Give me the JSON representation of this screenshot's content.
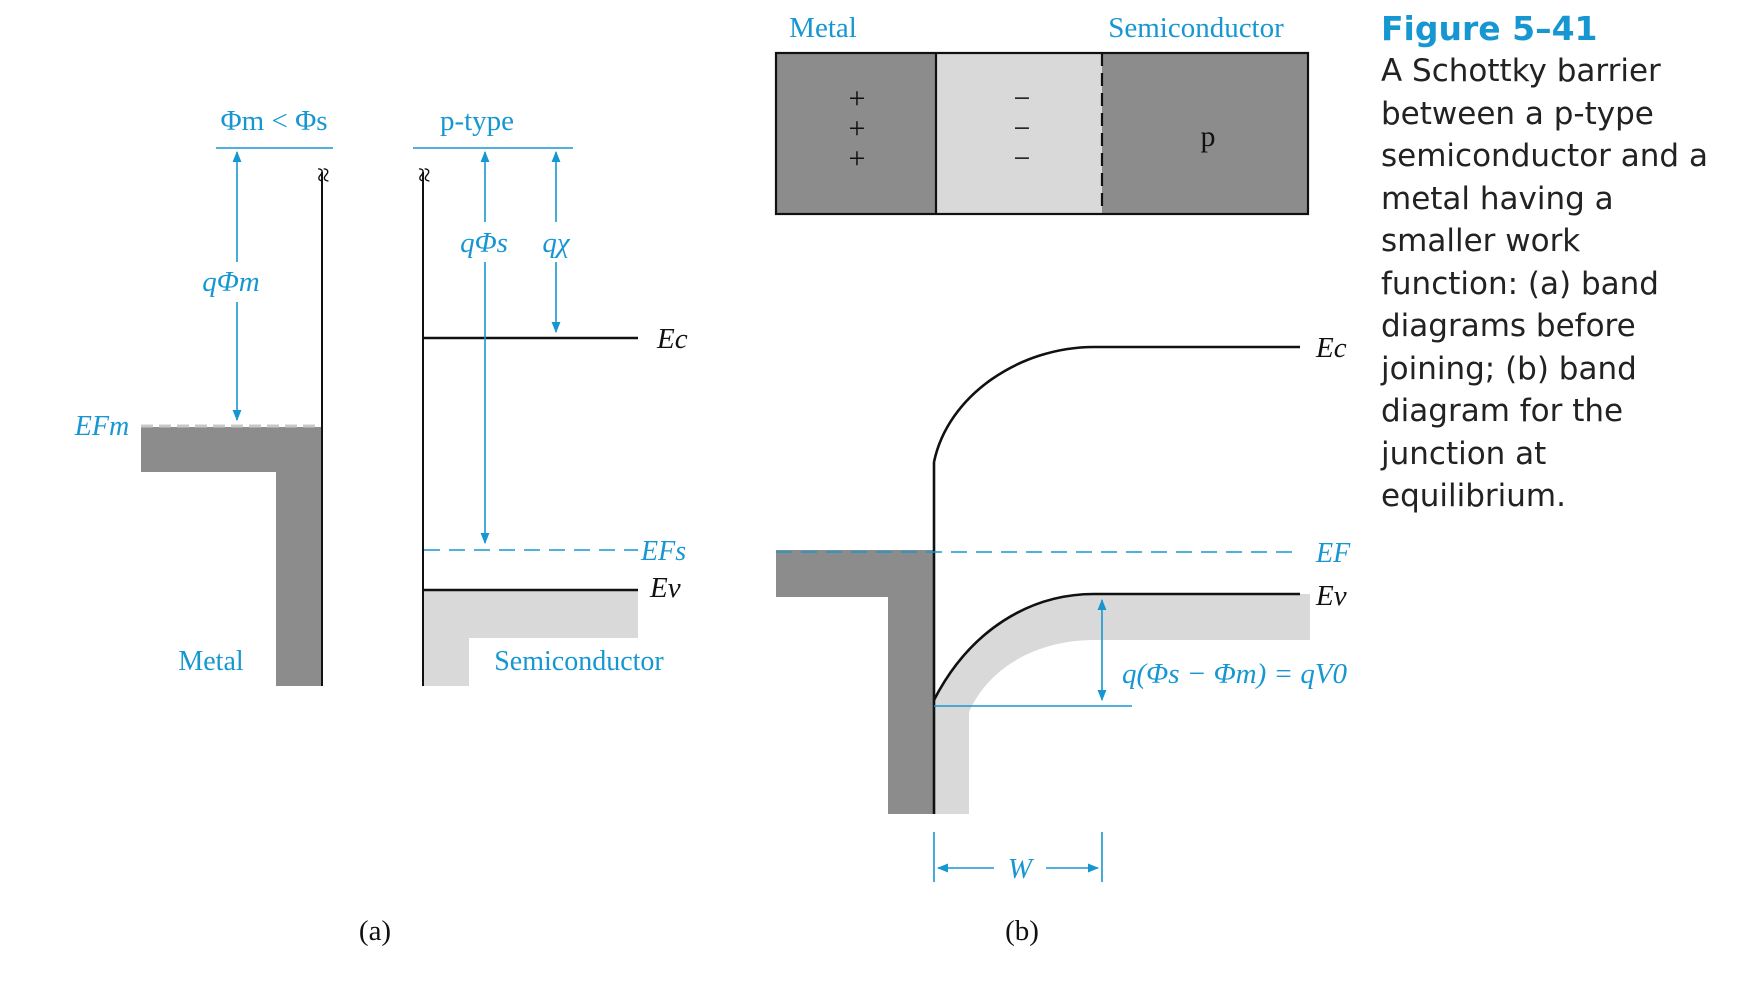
{
  "colors": {
    "accent": "#1797d1",
    "ink": "#111111",
    "metal_fill": "#8c8c8c",
    "semiconductor_fill": "#d9d9d9",
    "caption_title": "#1797d1"
  },
  "panel_a": {
    "condition": "Φm < Φs",
    "semiconductor_type": "p-type",
    "q_phi_m": "qΦm",
    "q_phi_s": "qΦs",
    "q_chi": "qχ",
    "ec_label": "Ec",
    "efs_label": "EFs",
    "ev_label": "Ev",
    "efm_label": "EFm",
    "metal_label": "Metal",
    "semiconductor_label": "Semiconductor",
    "break_symbol": "≈",
    "panel_label": "(a)"
  },
  "panel_b": {
    "metal_header": "Metal",
    "semiconductor_header": "Semiconductor",
    "positive_charges": [
      "+",
      "+",
      "+"
    ],
    "negative_charges": [
      "−",
      "−",
      "−"
    ],
    "p_region_label": "p",
    "ec_label": "Ec",
    "ef_label": "EF",
    "ev_label": "Ev",
    "barrier_label": "q(Φs − Φm) = qV0",
    "width_label": "W",
    "panel_label": "(b)"
  },
  "caption": {
    "title": "Figure 5–41",
    "text": "A Schottky barrier between a p-type semiconductor and a metal having a smaller work function: (a) band diagrams before joining; (b) band diagram for the junction at equilibrium."
  }
}
